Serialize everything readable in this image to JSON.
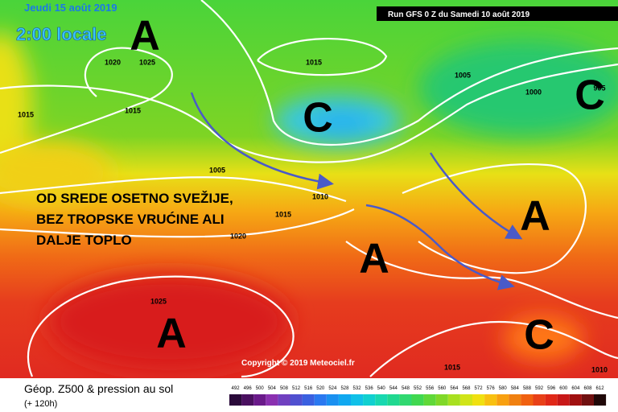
{
  "header": {
    "date": "Jeudi 15 août 2019",
    "time": "2:00 locale",
    "run": "Run GFS 0 Z du Samedi 10 août 2019"
  },
  "pressure_systems": [
    "A",
    "A",
    "A",
    "A",
    "C",
    "C",
    "C"
  ],
  "isobar_labels": [
    "1020",
    "1025",
    "1015",
    "1015",
    "1015",
    "1005",
    "1000",
    "995",
    "1005",
    "1010",
    "1015",
    "1020",
    "1025",
    "1015",
    "1010"
  ],
  "annotation": [
    "OD SREDE OSETNO SVEŽIJE,",
    "BEZ TROPSKE VRUĆINE ALI",
    "DALJE TOPLO"
  ],
  "copyright": "Copyright © 2019 Meteociel.fr",
  "footer": {
    "title": "Géop. Z500 & pression au sol",
    "subtitle": "(+ 120h)"
  },
  "scale": {
    "labels": [
      "492",
      "496",
      "500",
      "504",
      "508",
      "512",
      "516",
      "520",
      "524",
      "528",
      "532",
      "536",
      "540",
      "544",
      "548",
      "552",
      "556",
      "560",
      "564",
      "568",
      "572",
      "576",
      "580",
      "584",
      "588",
      "592",
      "596",
      "600",
      "604",
      "608",
      "612"
    ],
    "colors": [
      "#2a0a3a",
      "#4a1060",
      "#6a1a8a",
      "#8a30b0",
      "#7040c0",
      "#5050d0",
      "#3a60e0",
      "#2a78f0",
      "#1a90f0",
      "#10a8f0",
      "#10c0e8",
      "#10d0d0",
      "#18d8b0",
      "#20d890",
      "#30d870",
      "#40d850",
      "#60d838",
      "#80d828",
      "#a8e020",
      "#d0e418",
      "#f0e010",
      "#f8c010",
      "#f8a010",
      "#f08010",
      "#f06010",
      "#e84018",
      "#e02818",
      "#c81818",
      "#a01010",
      "#701010",
      "#200808"
    ]
  }
}
